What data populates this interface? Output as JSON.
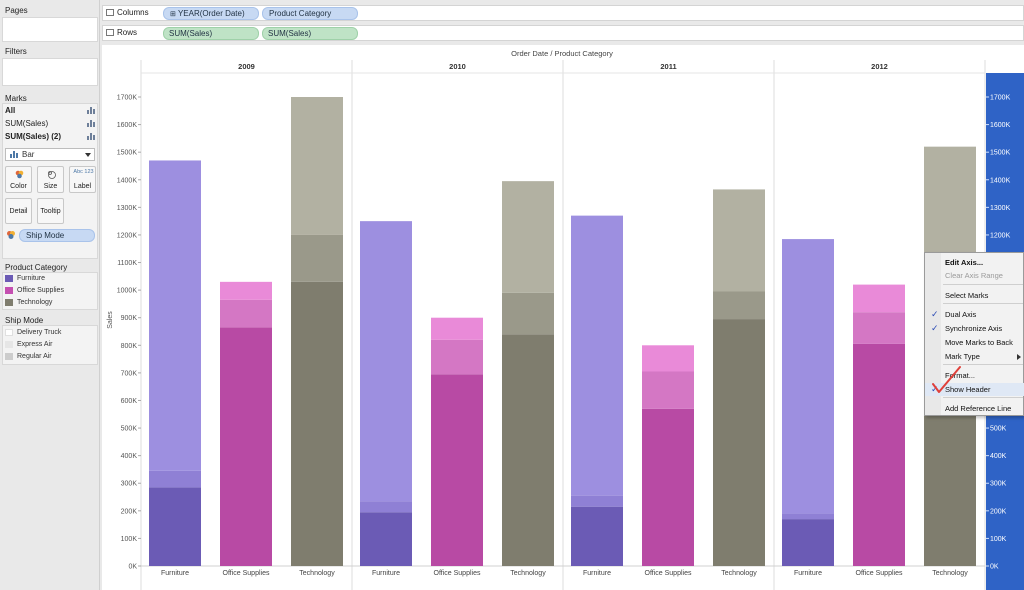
{
  "left_panel": {
    "pages": {
      "title": "Pages"
    },
    "filters": {
      "title": "Filters"
    },
    "marks": {
      "title": "Marks",
      "rows": [
        {
          "label": "All",
          "bold": true
        },
        {
          "label": "SUM(Sales)",
          "bold": false
        },
        {
          "label": "SUM(Sales) (2)",
          "bold": true
        }
      ],
      "mark_type": "Bar",
      "buttons": {
        "color": "Color",
        "size": "Size",
        "label": "Label",
        "detail": "Detail",
        "tooltip": "Tooltip"
      },
      "label_button_glyph": "Abc 123",
      "ship_mode_pill": "Ship Mode"
    },
    "product_category_legend": {
      "title": "Product Category",
      "items": [
        {
          "label": "Furniture",
          "color": "#6b5bb5"
        },
        {
          "label": "Office Supplies",
          "color": "#c44fb0"
        },
        {
          "label": "Technology",
          "color": "#7f7d6e"
        }
      ]
    },
    "ship_mode_legend": {
      "title": "Ship Mode",
      "items": [
        {
          "label": "Delivery Truck",
          "color": "#ffffff"
        },
        {
          "label": "Express Air",
          "color": "#e6e6e6"
        },
        {
          "label": "Regular Air",
          "color": "#cccccc"
        }
      ]
    }
  },
  "shelves": {
    "columns": {
      "label": "Columns",
      "pills": [
        "YEAR(Order Date)",
        "Product Category"
      ],
      "pill_prefix_icon": "⊞"
    },
    "rows": {
      "label": "Rows",
      "pills": [
        "SUM(Sales)",
        "SUM(Sales)"
      ]
    }
  },
  "chart_data": {
    "type": "bar",
    "title": "Order Date  /  Product Category",
    "ylabel": "Sales",
    "ylim": [
      0,
      1800
    ],
    "y_ticks": [
      "0K",
      "100K",
      "200K",
      "300K",
      "400K",
      "500K",
      "600K",
      "700K",
      "800K",
      "900K",
      "1000K",
      "1100K",
      "1200K",
      "1300K",
      "1400K",
      "1500K",
      "1600K",
      "1700K"
    ],
    "right_axis_ticks": [
      "0K",
      "100K",
      "200K",
      "300K",
      "400K",
      "500K",
      "1200K",
      "1300K",
      "1400K",
      "1500K",
      "1600K",
      "1700K"
    ],
    "years": [
      "2009",
      "2010",
      "2011",
      "2012"
    ],
    "categories": [
      "Furniture",
      "Office Supplies",
      "Technology"
    ],
    "segments_order": [
      "Delivery Truck",
      "Express Air",
      "Regular Air"
    ],
    "colors": {
      "Furniture": [
        "#6b5bb5",
        "#8f80d5",
        "#9d8fe0"
      ],
      "Office Supplies": [
        "#b84aa4",
        "#d477c4",
        "#e98ad8"
      ],
      "Technology": [
        "#7f7d6e",
        "#9a998a",
        "#b2b1a2"
      ]
    },
    "data": [
      {
        "year": "2009",
        "bars": [
          {
            "category": "Furniture",
            "segments": [
              285,
              60,
              1125
            ]
          },
          {
            "category": "Office Supplies",
            "segments": [
              865,
              100,
              65
            ]
          },
          {
            "category": "Technology",
            "segments": [
              1030,
              170,
              500
            ]
          }
        ]
      },
      {
        "year": "2010",
        "bars": [
          {
            "category": "Furniture",
            "segments": [
              195,
              40,
              1015
            ]
          },
          {
            "category": "Office Supplies",
            "segments": [
              695,
              125,
              80
            ]
          },
          {
            "category": "Technology",
            "segments": [
              840,
              150,
              405
            ]
          }
        ]
      },
      {
        "year": "2011",
        "bars": [
          {
            "category": "Furniture",
            "segments": [
              215,
              40,
              1015
            ]
          },
          {
            "category": "Office Supplies",
            "segments": [
              570,
              135,
              95
            ]
          },
          {
            "category": "Technology",
            "segments": [
              895,
              100,
              370
            ]
          }
        ]
      },
      {
        "year": "2012",
        "bars": [
          {
            "category": "Furniture",
            "segments": [
              170,
              20,
              995
            ]
          },
          {
            "category": "Office Supplies",
            "segments": [
              805,
              115,
              100
            ]
          },
          {
            "category": "Technology",
            "segments": [
              900,
              120,
              500
            ]
          }
        ]
      }
    ]
  },
  "context_menu": {
    "items": [
      {
        "label": "Edit Axis...",
        "bold": true,
        "disabled": false,
        "checked": false,
        "submenu": false
      },
      {
        "label": "Clear Axis Range",
        "bold": false,
        "disabled": true,
        "checked": false,
        "submenu": false
      },
      {
        "label": "Select Marks",
        "bold": false,
        "disabled": false,
        "checked": false,
        "submenu": false
      },
      {
        "label": "Dual Axis",
        "bold": false,
        "disabled": false,
        "checked": true,
        "submenu": false
      },
      {
        "label": "Synchronize Axis",
        "bold": false,
        "disabled": false,
        "checked": true,
        "submenu": false
      },
      {
        "label": "Move Marks to Back",
        "bold": false,
        "disabled": false,
        "checked": false,
        "submenu": false
      },
      {
        "label": "Mark Type",
        "bold": false,
        "disabled": false,
        "checked": false,
        "submenu": true
      },
      {
        "label": "Format...",
        "bold": false,
        "disabled": false,
        "checked": false,
        "submenu": false
      },
      {
        "label": "Show Header",
        "bold": false,
        "disabled": false,
        "checked": true,
        "submenu": false,
        "highlighted": true
      },
      {
        "label": "Add Reference Line",
        "bold": false,
        "disabled": false,
        "checked": false,
        "submenu": false
      }
    ],
    "checkmark": "✓"
  },
  "colors": {
    "right_axis_bg": "#2f63c6",
    "annotation_check": "#e0403a"
  }
}
